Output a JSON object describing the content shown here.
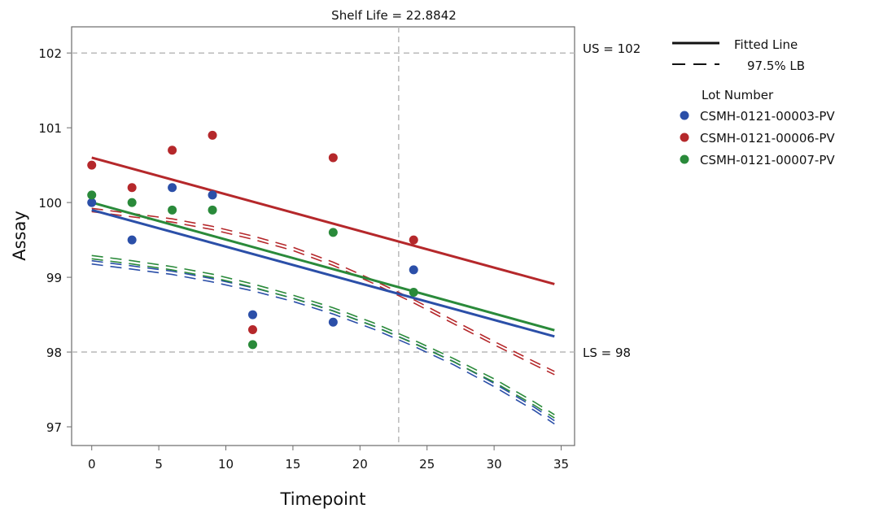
{
  "chart_data": {
    "type": "scatter",
    "title": "Shelf Life = 22.8842",
    "xlabel": "Timepoint",
    "ylabel": "Assay",
    "xlim": [
      -1.5,
      36
    ],
    "ylim": [
      96.75,
      102.35
    ],
    "xticks": [
      0,
      5,
      10,
      15,
      20,
      25,
      30,
      35
    ],
    "yticks": [
      97,
      98,
      99,
      100,
      101,
      102
    ],
    "grid": false,
    "reference_lines": {
      "upper_spec": {
        "label": "US = 102",
        "value": 102
      },
      "lower_spec": {
        "label": "LS = 98",
        "value": 98
      },
      "shelf_life": 22.8842
    },
    "legend": {
      "placement": "right",
      "line_entries": [
        {
          "label": "Fitted Line",
          "style": "solid"
        },
        {
          "label": "97.5% LB",
          "style": "dashed"
        }
      ],
      "group_title": "Lot Number"
    },
    "series": [
      {
        "name": "CSMH-0121-00003-PV",
        "color": "#2b4fa8",
        "points": [
          [
            0,
            100.0
          ],
          [
            3,
            99.5
          ],
          [
            6,
            100.2
          ],
          [
            9,
            100.1
          ],
          [
            12,
            98.5
          ],
          [
            18,
            98.4
          ],
          [
            24,
            99.1
          ]
        ],
        "fit": {
          "intercept": 99.9,
          "slope": -0.049
        },
        "lb": [
          [
            0,
            99.2
          ],
          [
            3,
            99.13
          ],
          [
            6,
            99.06
          ],
          [
            9,
            98.96
          ],
          [
            12,
            98.84
          ],
          [
            15,
            98.7
          ],
          [
            18,
            98.53
          ],
          [
            21,
            98.33
          ],
          [
            24,
            98.1
          ],
          [
            27,
            97.85
          ],
          [
            30,
            97.56
          ],
          [
            33,
            97.24
          ],
          [
            34.5,
            97.06
          ]
        ]
      },
      {
        "name": "CSMH-0121-00006-PV",
        "color": "#b5282b",
        "points": [
          [
            0,
            100.5
          ],
          [
            3,
            100.2
          ],
          [
            6,
            100.7
          ],
          [
            9,
            100.9
          ],
          [
            12,
            98.3
          ],
          [
            18,
            100.6
          ],
          [
            24,
            99.5
          ]
        ],
        "fit": {
          "intercept": 100.6,
          "slope": -0.049
        },
        "lb": [
          [
            0,
            99.9
          ],
          [
            3,
            99.83
          ],
          [
            6,
            99.76
          ],
          [
            9,
            99.66
          ],
          [
            12,
            99.53
          ],
          [
            15,
            99.38
          ],
          [
            18,
            99.18
          ],
          [
            21,
            98.94
          ],
          [
            24,
            98.68
          ],
          [
            27,
            98.4
          ],
          [
            30,
            98.12
          ],
          [
            33,
            97.85
          ],
          [
            34.5,
            97.72
          ]
        ]
      },
      {
        "name": "CSMH-0121-00007-PV",
        "color": "#2a8a3a",
        "points": [
          [
            0,
            100.1
          ],
          [
            3,
            100.0
          ],
          [
            6,
            99.9
          ],
          [
            9,
            99.9
          ],
          [
            12,
            98.1
          ],
          [
            18,
            99.6
          ],
          [
            24,
            98.8
          ]
        ],
        "fit": {
          "intercept": 100.0,
          "slope": -0.0495
        },
        "lb": [
          [
            0,
            99.27
          ],
          [
            3,
            99.2
          ],
          [
            6,
            99.12
          ],
          [
            9,
            99.02
          ],
          [
            12,
            98.89
          ],
          [
            15,
            98.74
          ],
          [
            18,
            98.57
          ],
          [
            21,
            98.37
          ],
          [
            24,
            98.14
          ],
          [
            27,
            97.89
          ],
          [
            30,
            97.62
          ],
          [
            33,
            97.31
          ],
          [
            34.5,
            97.14
          ]
        ]
      }
    ]
  }
}
